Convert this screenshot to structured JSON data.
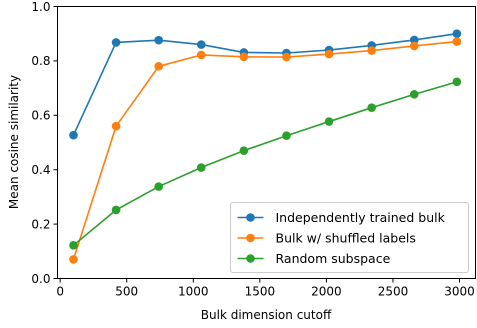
{
  "chart_data": {
    "type": "line",
    "title": "",
    "xlabel": "Bulk dimension cutoff",
    "ylabel": "Mean cosine similarity",
    "xlim": [
      -20,
      3120
    ],
    "ylim": [
      0,
      1.0
    ],
    "x_ticks": [
      0,
      500,
      1000,
      1500,
      2000,
      2500,
      3000
    ],
    "y_ticks": [
      0.0,
      0.2,
      0.4,
      0.6,
      0.8,
      1.0
    ],
    "x_tick_labels": [
      "0",
      "500",
      "1000",
      "1500",
      "2000",
      "2500",
      "3000"
    ],
    "y_tick_labels": [
      "0.0",
      "0.2",
      "0.4",
      "0.6",
      "0.8",
      "1.0"
    ],
    "grid": false,
    "legend_position": "bottom-right",
    "x": [
      100,
      420,
      740,
      1060,
      1380,
      1700,
      2020,
      2340,
      2660,
      2980
    ],
    "series": [
      {
        "name": "Independently trained bulk",
        "color": "#1f77b4",
        "values": [
          0.527,
          0.868,
          0.876,
          0.86,
          0.831,
          0.829,
          0.84,
          0.857,
          0.877,
          0.9
        ]
      },
      {
        "name": "Bulk w/ shuffled labels",
        "color": "#ff7f0e",
        "values": [
          0.07,
          0.56,
          0.78,
          0.822,
          0.815,
          0.814,
          0.825,
          0.838,
          0.855,
          0.871
        ]
      },
      {
        "name": "Random subspace",
        "color": "#2ca02c",
        "values": [
          0.122,
          0.252,
          0.338,
          0.408,
          0.47,
          0.525,
          0.577,
          0.628,
          0.677,
          0.723
        ]
      }
    ]
  }
}
